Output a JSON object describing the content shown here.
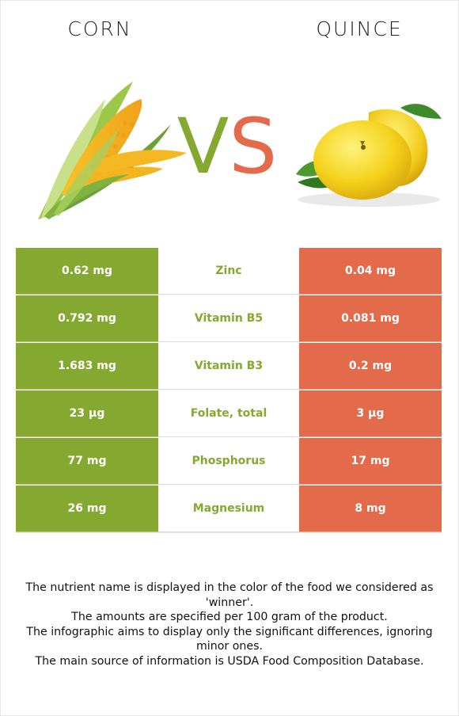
{
  "foods": {
    "left": {
      "name": "CORN",
      "color": "#84a830",
      "image": "corn-image"
    },
    "right": {
      "name": "QUINCE",
      "color": "#e36b4c",
      "image": "quince-image"
    }
  },
  "vs": {
    "v": "V",
    "s": "S"
  },
  "rows": [
    {
      "left": "0.62 mg",
      "nutrient": "Zinc",
      "right": "0.04 mg"
    },
    {
      "left": "0.792 mg",
      "nutrient": "Vitamin B5",
      "right": "0.081 mg"
    },
    {
      "left": "1.683 mg",
      "nutrient": "Vitamin B3",
      "right": "0.2 mg"
    },
    {
      "left": "23 µg",
      "nutrient": "Folate, total",
      "right": "3 µg"
    },
    {
      "left": "77 mg",
      "nutrient": "Phosphorus",
      "right": "17 mg"
    },
    {
      "left": "26 mg",
      "nutrient": "Magnesium",
      "right": "8 mg"
    }
  ],
  "notes": [
    "The nutrient name is displayed in the color of the food we considered as 'winner'.",
    "The amounts are specified per 100 gram of the product.",
    "The infographic aims to display only the significant differences, ignoring minor ones.",
    "The main source of information is USDA Food Composition Database."
  ]
}
